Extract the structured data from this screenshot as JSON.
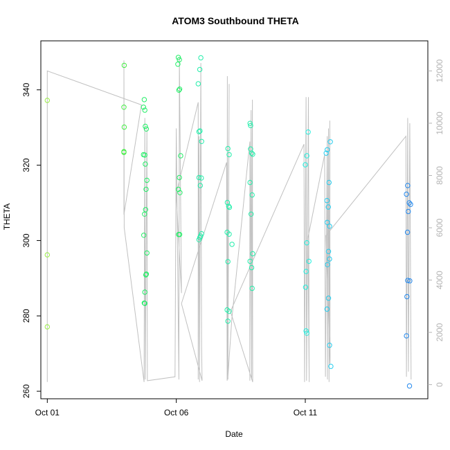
{
  "chart_data": {
    "type": "scatter",
    "title": "ATOM3 Southbound THETA",
    "xlabel": "Date",
    "ylabel": "THETA",
    "x_ticks": [
      {
        "label": "Oct 01",
        "day": 1
      },
      {
        "label": "Oct 06",
        "day": 6
      },
      {
        "label": "Oct 11",
        "day": 11
      }
    ],
    "y_ticks": [
      260,
      280,
      300,
      320,
      340
    ],
    "y_right_ticks": [
      0,
      2000,
      4000,
      6000,
      8000,
      10000,
      12000
    ],
    "xlim": [
      0.75,
      15.75
    ],
    "ylim": [
      258,
      353
    ],
    "y_right_lim": [
      -540,
      13150
    ],
    "grid": false,
    "legend": "none",
    "colors": {
      "axes": "#000000",
      "overlay_line": "#c0c0c0",
      "right_axis": "#b3b3b3",
      "point_palette": [
        "#99ee44",
        "#44ee44",
        "#22ee66",
        "#22eeaa",
        "#22eedd",
        "#22ccee",
        "#2288ee"
      ]
    },
    "points": [
      {
        "x": 1.0,
        "y": 337.2
      },
      {
        "x": 1.0,
        "y": 296.2
      },
      {
        "x": 1.0,
        "y": 277.1
      },
      {
        "x": 3.98,
        "y": 346.5
      },
      {
        "x": 3.97,
        "y": 335.4
      },
      {
        "x": 3.98,
        "y": 330.1
      },
      {
        "x": 3.97,
        "y": 323.6
      },
      {
        "x": 3.97,
        "y": 323.4
      },
      {
        "x": 4.76,
        "y": 337.4
      },
      {
        "x": 4.73,
        "y": 335.4
      },
      {
        "x": 4.78,
        "y": 334.6
      },
      {
        "x": 4.8,
        "y": 330.3
      },
      {
        "x": 4.84,
        "y": 329.6
      },
      {
        "x": 4.73,
        "y": 322.8
      },
      {
        "x": 4.78,
        "y": 322.7
      },
      {
        "x": 4.8,
        "y": 320.3
      },
      {
        "x": 4.86,
        "y": 316.0
      },
      {
        "x": 4.83,
        "y": 313.6
      },
      {
        "x": 4.81,
        "y": 308.2
      },
      {
        "x": 4.77,
        "y": 307.0
      },
      {
        "x": 4.74,
        "y": 301.4
      },
      {
        "x": 4.86,
        "y": 296.7
      },
      {
        "x": 4.84,
        "y": 291.1
      },
      {
        "x": 4.82,
        "y": 290.9
      },
      {
        "x": 4.78,
        "y": 286.3
      },
      {
        "x": 4.76,
        "y": 283.4
      },
      {
        "x": 4.78,
        "y": 283.3
      },
      {
        "x": 6.08,
        "y": 348.6
      },
      {
        "x": 6.12,
        "y": 348.0
      },
      {
        "x": 6.06,
        "y": 346.8
      },
      {
        "x": 6.13,
        "y": 340.2
      },
      {
        "x": 6.1,
        "y": 339.9
      },
      {
        "x": 6.17,
        "y": 322.5
      },
      {
        "x": 6.12,
        "y": 316.7
      },
      {
        "x": 6.08,
        "y": 313.6
      },
      {
        "x": 6.14,
        "y": 312.7
      },
      {
        "x": 6.09,
        "y": 301.6
      },
      {
        "x": 6.13,
        "y": 301.6
      },
      {
        "x": 6.95,
        "y": 348.5
      },
      {
        "x": 6.91,
        "y": 345.4
      },
      {
        "x": 6.85,
        "y": 341.6
      },
      {
        "x": 6.92,
        "y": 329.1
      },
      {
        "x": 6.88,
        "y": 328.9
      },
      {
        "x": 6.98,
        "y": 326.3
      },
      {
        "x": 6.88,
        "y": 316.7
      },
      {
        "x": 6.97,
        "y": 316.6
      },
      {
        "x": 6.93,
        "y": 314.6
      },
      {
        "x": 6.98,
        "y": 301.8
      },
      {
        "x": 6.94,
        "y": 301.2
      },
      {
        "x": 6.91,
        "y": 300.8
      },
      {
        "x": 6.88,
        "y": 300.2
      },
      {
        "x": 8.0,
        "y": 324.4
      },
      {
        "x": 8.05,
        "y": 322.8
      },
      {
        "x": 7.98,
        "y": 310.1
      },
      {
        "x": 8.03,
        "y": 309.1
      },
      {
        "x": 8.06,
        "y": 308.8
      },
      {
        "x": 7.97,
        "y": 302.2
      },
      {
        "x": 8.05,
        "y": 301.7
      },
      {
        "x": 8.16,
        "y": 299.0
      },
      {
        "x": 8.0,
        "y": 294.4
      },
      {
        "x": 7.97,
        "y": 281.6
      },
      {
        "x": 8.05,
        "y": 281.2
      },
      {
        "x": 8.0,
        "y": 278.6
      },
      {
        "x": 8.86,
        "y": 331.1
      },
      {
        "x": 8.88,
        "y": 330.5
      },
      {
        "x": 8.88,
        "y": 324.3
      },
      {
        "x": 8.92,
        "y": 323.2
      },
      {
        "x": 8.96,
        "y": 322.9
      },
      {
        "x": 8.86,
        "y": 315.4
      },
      {
        "x": 8.94,
        "y": 312.1
      },
      {
        "x": 8.9,
        "y": 307.0
      },
      {
        "x": 8.96,
        "y": 296.5
      },
      {
        "x": 8.86,
        "y": 294.5
      },
      {
        "x": 8.92,
        "y": 292.8
      },
      {
        "x": 8.94,
        "y": 287.3
      },
      {
        "x": 11.11,
        "y": 328.8
      },
      {
        "x": 11.06,
        "y": 322.5
      },
      {
        "x": 11.0,
        "y": 320.1
      },
      {
        "x": 11.06,
        "y": 299.4
      },
      {
        "x": 11.14,
        "y": 294.5
      },
      {
        "x": 11.03,
        "y": 291.8
      },
      {
        "x": 11.01,
        "y": 287.6
      },
      {
        "x": 11.03,
        "y": 276.0
      },
      {
        "x": 11.06,
        "y": 275.4
      },
      {
        "x": 11.85,
        "y": 324.1
      },
      {
        "x": 11.81,
        "y": 323.2
      },
      {
        "x": 11.97,
        "y": 326.2
      },
      {
        "x": 11.92,
        "y": 315.4
      },
      {
        "x": 11.84,
        "y": 310.6
      },
      {
        "x": 11.89,
        "y": 308.9
      },
      {
        "x": 11.85,
        "y": 304.8
      },
      {
        "x": 11.94,
        "y": 303.8
      },
      {
        "x": 11.9,
        "y": 297.1
      },
      {
        "x": 11.94,
        "y": 295.1
      },
      {
        "x": 11.86,
        "y": 293.6
      },
      {
        "x": 11.84,
        "y": 281.8
      },
      {
        "x": 11.9,
        "y": 284.7
      },
      {
        "x": 11.94,
        "y": 272.2
      },
      {
        "x": 11.99,
        "y": 266.6
      },
      {
        "x": 14.97,
        "y": 314.6
      },
      {
        "x": 14.92,
        "y": 312.3
      },
      {
        "x": 15.03,
        "y": 310.0
      },
      {
        "x": 15.08,
        "y": 309.6
      },
      {
        "x": 14.99,
        "y": 307.7
      },
      {
        "x": 14.96,
        "y": 302.2
      },
      {
        "x": 14.97,
        "y": 289.4
      },
      {
        "x": 15.05,
        "y": 289.3
      },
      {
        "x": 14.94,
        "y": 285.1
      },
      {
        "x": 14.92,
        "y": 274.7
      },
      {
        "x": 15.04,
        "y": 261.4
      }
    ],
    "overlay_right": {
      "note_axis": "right",
      "polyline": [
        {
          "x": 1.0,
          "y": 100
        },
        {
          "x": 1.0,
          "y": 12000
        },
        {
          "x": 4.65,
          "y": 10700
        },
        {
          "x": 3.97,
          "y": 6500
        },
        {
          "x": 3.97,
          "y": 12400
        },
        {
          "x": 3.98,
          "y": 6000
        },
        {
          "x": 4.75,
          "y": 100
        },
        {
          "x": 4.78,
          "y": 10200
        },
        {
          "x": 4.8,
          "y": 200
        },
        {
          "x": 4.86,
          "y": 9800
        },
        {
          "x": 4.88,
          "y": 150
        },
        {
          "x": 5.95,
          "y": 300
        },
        {
          "x": 6.0,
          "y": 9800
        },
        {
          "x": 6.1,
          "y": 200
        },
        {
          "x": 6.12,
          "y": 12500
        },
        {
          "x": 6.2,
          "y": 3500
        },
        {
          "x": 6.0,
          "y": 7300
        },
        {
          "x": 6.85,
          "y": 10800
        },
        {
          "x": 6.85,
          "y": 200
        },
        {
          "x": 6.88,
          "y": 9500
        },
        {
          "x": 6.9,
          "y": 100
        },
        {
          "x": 6.95,
          "y": 12300
        },
        {
          "x": 6.98,
          "y": 1500
        },
        {
          "x": 7.0,
          "y": 150
        },
        {
          "x": 6.2,
          "y": 3100
        },
        {
          "x": 7.95,
          "y": 8500
        },
        {
          "x": 7.97,
          "y": 150
        },
        {
          "x": 7.98,
          "y": 11800
        },
        {
          "x": 8.0,
          "y": 200
        },
        {
          "x": 8.05,
          "y": 11500
        },
        {
          "x": 8.0,
          "y": 300
        },
        {
          "x": 8.15,
          "y": 2500
        },
        {
          "x": 8.85,
          "y": 9300
        },
        {
          "x": 8.85,
          "y": 150
        },
        {
          "x": 8.9,
          "y": 10500
        },
        {
          "x": 8.92,
          "y": 200
        },
        {
          "x": 8.95,
          "y": 10900
        },
        {
          "x": 8.96,
          "y": 100
        },
        {
          "x": 8.1,
          "y": 2800
        },
        {
          "x": 10.95,
          "y": 9200
        },
        {
          "x": 10.97,
          "y": 100
        },
        {
          "x": 11.03,
          "y": 11000
        },
        {
          "x": 11.05,
          "y": 150
        },
        {
          "x": 11.1,
          "y": 7500
        },
        {
          "x": 11.12,
          "y": 11000
        },
        {
          "x": 11.15,
          "y": 100
        },
        {
          "x": 11.1,
          "y": 5600
        },
        {
          "x": 11.75,
          "y": 8800
        },
        {
          "x": 11.78,
          "y": 300
        },
        {
          "x": 11.85,
          "y": 9500
        },
        {
          "x": 11.86,
          "y": 200
        },
        {
          "x": 11.9,
          "y": 9800
        },
        {
          "x": 11.92,
          "y": 100
        },
        {
          "x": 11.95,
          "y": 10100
        },
        {
          "x": 11.96,
          "y": 800
        },
        {
          "x": 11.8,
          "y": 5700
        },
        {
          "x": 14.9,
          "y": 9500
        },
        {
          "x": 14.92,
          "y": 300
        },
        {
          "x": 14.97,
          "y": 10200
        },
        {
          "x": 15.0,
          "y": 500
        },
        {
          "x": 15.05,
          "y": 10000
        },
        {
          "x": 15.1,
          "y": 200
        }
      ]
    }
  }
}
